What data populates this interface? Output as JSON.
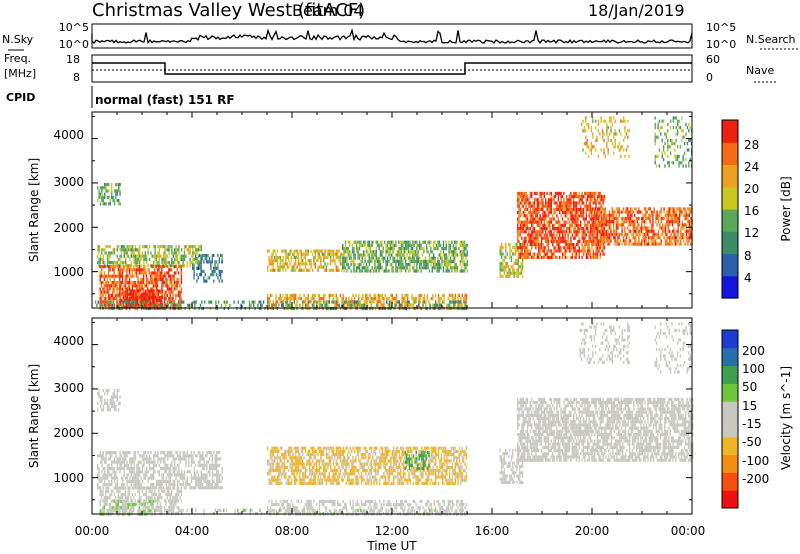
{
  "header": {
    "station": "Christmas Valley West (fitACF)",
    "beam": "Beam 04",
    "date": "18/Jan/2019"
  },
  "noise_panel": {
    "left_label": "N.Sky",
    "left_ticks": [
      "10^5",
      "10^0"
    ],
    "right_ticks": [
      "10^5",
      "10^0"
    ],
    "right_label": "N.Search"
  },
  "freq_panel": {
    "left_label_1": "Freq.",
    "left_label_2": "[MHz]",
    "left_ticks": [
      "18",
      "8"
    ],
    "right_ticks": [
      "60",
      "0"
    ],
    "right_label": "Nave"
  },
  "cpid": {
    "label": "CPID",
    "value": "normal (fast) 151 RF"
  },
  "colors": {
    "power": [
      "#1414e0",
      "#2e5fae",
      "#3c8c6a",
      "#5aa85a",
      "#c8c820",
      "#f0a020",
      "#f56a14",
      "#ee2010"
    ],
    "velocity": [
      "#ee1010",
      "#f55010",
      "#f58c14",
      "#f0b428",
      "#c8c8c0",
      "#c8c8c0",
      "#6ec83c",
      "#3ca050",
      "#2a6eaa",
      "#1e3cd2"
    ]
  },
  "chart_data": [
    {
      "type": "heatmap",
      "title": "",
      "xlabel": "",
      "ylabel": "Slant Range [km]",
      "colorbar_label": "Power [dB]",
      "colorbar_ticks": [
        "28",
        "24",
        "20",
        "16",
        "12",
        "8",
        "4"
      ],
      "colorbar_range": [
        0,
        32
      ],
      "x_ticks": [
        "00:00",
        "04:00",
        "08:00",
        "12:00",
        "16:00",
        "20:00",
        "00:00"
      ],
      "x_range_hours": [
        0,
        24
      ],
      "y_ticks": [
        "4000",
        "3000",
        "2000",
        "1000"
      ],
      "y_range_km": [
        180,
        4600
      ],
      "regions": [
        {
          "t0": 0.2,
          "t1": 1.1,
          "r0": 2500,
          "r1": 3000,
          "v": 13,
          "d": 0.55
        },
        {
          "t0": 0.2,
          "t1": 4.4,
          "r0": 1150,
          "r1": 1600,
          "v": 16,
          "d": 0.6
        },
        {
          "t0": 0.3,
          "t1": 3.6,
          "r0": 200,
          "r1": 1150,
          "v": 27,
          "d": 0.7
        },
        {
          "t0": 4.0,
          "t1": 5.2,
          "r0": 800,
          "r1": 1400,
          "v": 8,
          "d": 0.45
        },
        {
          "t0": 1.0,
          "t1": 2.8,
          "r0": 200,
          "r1": 600,
          "v": 30,
          "d": 0.8
        },
        {
          "t0": 7.0,
          "t1": 15.0,
          "r0": 200,
          "r1": 500,
          "v": 22,
          "d": 0.55
        },
        {
          "t0": 7.0,
          "t1": 10.0,
          "r0": 1000,
          "r1": 1500,
          "v": 20,
          "d": 0.6
        },
        {
          "t0": 10.0,
          "t1": 15.0,
          "r0": 1000,
          "r1": 1700,
          "v": 14,
          "d": 0.65
        },
        {
          "t0": 16.3,
          "t1": 17.2,
          "r0": 900,
          "r1": 1650,
          "v": 18,
          "d": 0.6
        },
        {
          "t0": 17.0,
          "t1": 20.5,
          "r0": 1350,
          "r1": 2800,
          "v": 28,
          "d": 0.7
        },
        {
          "t0": 20.0,
          "t1": 24.0,
          "r0": 1600,
          "r1": 2450,
          "v": 26,
          "d": 0.65
        },
        {
          "t0": 19.5,
          "t1": 21.5,
          "r0": 3600,
          "r1": 4500,
          "v": 20,
          "d": 0.25
        },
        {
          "t0": 22.5,
          "t1": 24.0,
          "r0": 3400,
          "r1": 4500,
          "v": 14,
          "d": 0.25
        },
        {
          "t0": 0.0,
          "t1": 15.0,
          "r0": 180,
          "r1": 350,
          "v": 12,
          "d": 0.35
        }
      ]
    },
    {
      "type": "heatmap",
      "title": "",
      "xlabel": "Time UT",
      "ylabel": "Slant Range [km]",
      "colorbar_label": "Velocity [m s^-1]",
      "colorbar_ticks": [
        "200",
        "100",
        "50",
        "15",
        "-15",
        "-50",
        "-100",
        "-200"
      ],
      "colorbar_range": [
        -250,
        250
      ],
      "x_ticks": [
        "00:00",
        "04:00",
        "08:00",
        "12:00",
        "16:00",
        "20:00",
        "00:00"
      ],
      "x_range_hours": [
        0,
        24
      ],
      "y_ticks": [
        "4000",
        "3000",
        "2000",
        "1000"
      ],
      "y_range_km": [
        180,
        4600
      ],
      "regions": [
        {
          "t0": 0.2,
          "t1": 1.1,
          "r0": 2500,
          "r1": 3000,
          "v": 0,
          "d": 0.55
        },
        {
          "t0": 0.2,
          "t1": 5.2,
          "r0": 800,
          "r1": 1600,
          "v": 0,
          "d": 0.6
        },
        {
          "t0": 0.3,
          "t1": 3.6,
          "r0": 200,
          "r1": 800,
          "v": 0,
          "d": 0.55
        },
        {
          "t0": 0.3,
          "t1": 2.5,
          "r0": 200,
          "r1": 500,
          "v": 45,
          "d": 0.5
        },
        {
          "t0": 7.0,
          "t1": 15.0,
          "r0": 200,
          "r1": 500,
          "v": 0,
          "d": 0.45
        },
        {
          "t0": 7.0,
          "t1": 15.0,
          "r0": 900,
          "r1": 1700,
          "v": -60,
          "d": 0.65
        },
        {
          "t0": 12.5,
          "t1": 13.5,
          "r0": 1200,
          "r1": 1600,
          "v": 120,
          "d": 0.5
        },
        {
          "t0": 16.3,
          "t1": 17.2,
          "r0": 900,
          "r1": 1650,
          "v": 0,
          "d": 0.6
        },
        {
          "t0": 17.0,
          "t1": 24.0,
          "r0": 1400,
          "r1": 2800,
          "v": 0,
          "d": 0.7
        },
        {
          "t0": 19.5,
          "t1": 21.5,
          "r0": 3600,
          "r1": 4500,
          "v": 0,
          "d": 0.25
        },
        {
          "t0": 22.5,
          "t1": 24.0,
          "r0": 3400,
          "r1": 4500,
          "v": 0,
          "d": 0.25
        },
        {
          "t0": 3.0,
          "t1": 15.0,
          "r0": 180,
          "r1": 300,
          "v": 30,
          "d": 0.3
        }
      ]
    }
  ]
}
